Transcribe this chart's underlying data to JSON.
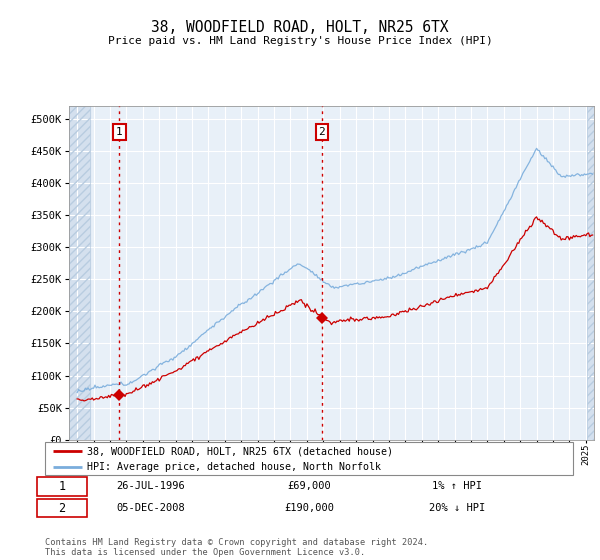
{
  "title": "38, WOODFIELD ROAD, HOLT, NR25 6TX",
  "subtitle": "Price paid vs. HM Land Registry's House Price Index (HPI)",
  "legend_line1": "38, WOODFIELD ROAD, HOLT, NR25 6TX (detached house)",
  "legend_line2": "HPI: Average price, detached house, North Norfolk",
  "annotation1_date": "26-JUL-1996",
  "annotation1_price": "£69,000",
  "annotation1_hpi": "1% ↑ HPI",
  "annotation2_date": "05-DEC-2008",
  "annotation2_price": "£190,000",
  "annotation2_hpi": "20% ↓ HPI",
  "footer": "Contains HM Land Registry data © Crown copyright and database right 2024.\nThis data is licensed under the Open Government Licence v3.0.",
  "sale1_year": 1996.57,
  "sale1_value": 69000,
  "sale2_year": 2008.92,
  "sale2_value": 190000,
  "hpi_color": "#7aaddc",
  "price_color": "#cc0000",
  "dashed_color": "#cc0000",
  "background_plot": "#e8f0f8",
  "ylim_min": 0,
  "ylim_max": 520000,
  "xlim_min": 1993.5,
  "xlim_max": 2025.5
}
